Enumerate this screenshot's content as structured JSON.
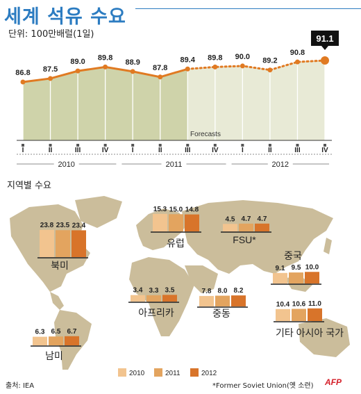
{
  "title": "세계 석유 수요",
  "unit_label": "단위: 100만배럴(1일)",
  "regional_title": "지역별 수요",
  "source": "출처: IEA",
  "footnote": "*Former Soviet Union(옛 소련)",
  "logo": "AFP",
  "colors": {
    "accent_blue": "#2c7cc1",
    "line_orange": "#e07a22",
    "area_actual": "#cfd3aa",
    "area_forecast": "#e8ead6",
    "bar_2010": "#f2c48f",
    "bar_2011": "#e3a45f",
    "bar_2012": "#d8742a",
    "continent": "#cbbd9b",
    "ocean": "#ffffff"
  },
  "chart_data": [
    {
      "type": "line",
      "title": "세계 석유 수요",
      "ylabel": "단위: 100만배럴(1일)",
      "categories": [
        "I",
        "II",
        "III",
        "IV",
        "I",
        "II",
        "III",
        "IV",
        "I",
        "II",
        "III",
        "IV"
      ],
      "year_groups": [
        {
          "label": "2010",
          "quarters": [
            "I",
            "II",
            "III",
            "IV"
          ]
        },
        {
          "label": "2011",
          "quarters": [
            "I",
            "II",
            "III",
            "IV"
          ]
        },
        {
          "label": "2012",
          "quarters": [
            "I",
            "II",
            "III",
            "IV"
          ]
        }
      ],
      "series": [
        {
          "values": [
            86.8,
            87.5,
            89.0,
            89.8,
            88.9,
            87.8,
            89.4,
            89.8,
            90.0,
            89.2,
            90.8,
            91.1
          ]
        }
      ],
      "value_labels": [
        "86.8",
        "87.5",
        "89.0",
        "89.8",
        "88.9",
        "87.8",
        "89.4",
        "89.8",
        "90.0",
        "89.2",
        "90.8",
        "91.1"
      ],
      "forecast_label": "Forecasts",
      "forecast_start_index": 6,
      "highlight_index": 11,
      "ylim": [
        80,
        92
      ]
    },
    {
      "type": "bar",
      "title": "지역별 수요",
      "legend": [
        "2010",
        "2011",
        "2012"
      ],
      "legend_position": "bottom",
      "regions": [
        {
          "name": "북미",
          "values": [
            23.8,
            23.5,
            23.4
          ],
          "value_labels": [
            "23.8",
            "23.5",
            "23.4"
          ]
        },
        {
          "name": "유럽",
          "values": [
            15.3,
            15.0,
            14.8
          ],
          "value_labels": [
            "15.3",
            "15.0",
            "14.8"
          ]
        },
        {
          "name": "FSU*",
          "values": [
            4.5,
            4.7,
            4.7
          ],
          "value_labels": [
            "4.5",
            "4.7",
            "4.7"
          ]
        },
        {
          "name": "중국",
          "values": [
            9.1,
            9.5,
            10.0
          ],
          "value_labels": [
            "9.1",
            "9.5",
            "10.0"
          ]
        },
        {
          "name": "아프리카",
          "values": [
            3.4,
            3.3,
            3.5
          ],
          "value_labels": [
            "3.4",
            "3.3",
            "3.5"
          ]
        },
        {
          "name": "중동",
          "values": [
            7.8,
            8.0,
            8.2
          ],
          "value_labels": [
            "7.8",
            "8.0",
            "8.2"
          ]
        },
        {
          "name": "기타 아시아 국가",
          "values": [
            10.4,
            10.6,
            11.0
          ],
          "value_labels": [
            "10.4",
            "10.6",
            "11.0"
          ]
        },
        {
          "name": "남미",
          "values": [
            6.3,
            6.5,
            6.7
          ],
          "value_labels": [
            "6.3",
            "6.5",
            "6.7"
          ]
        }
      ]
    }
  ]
}
